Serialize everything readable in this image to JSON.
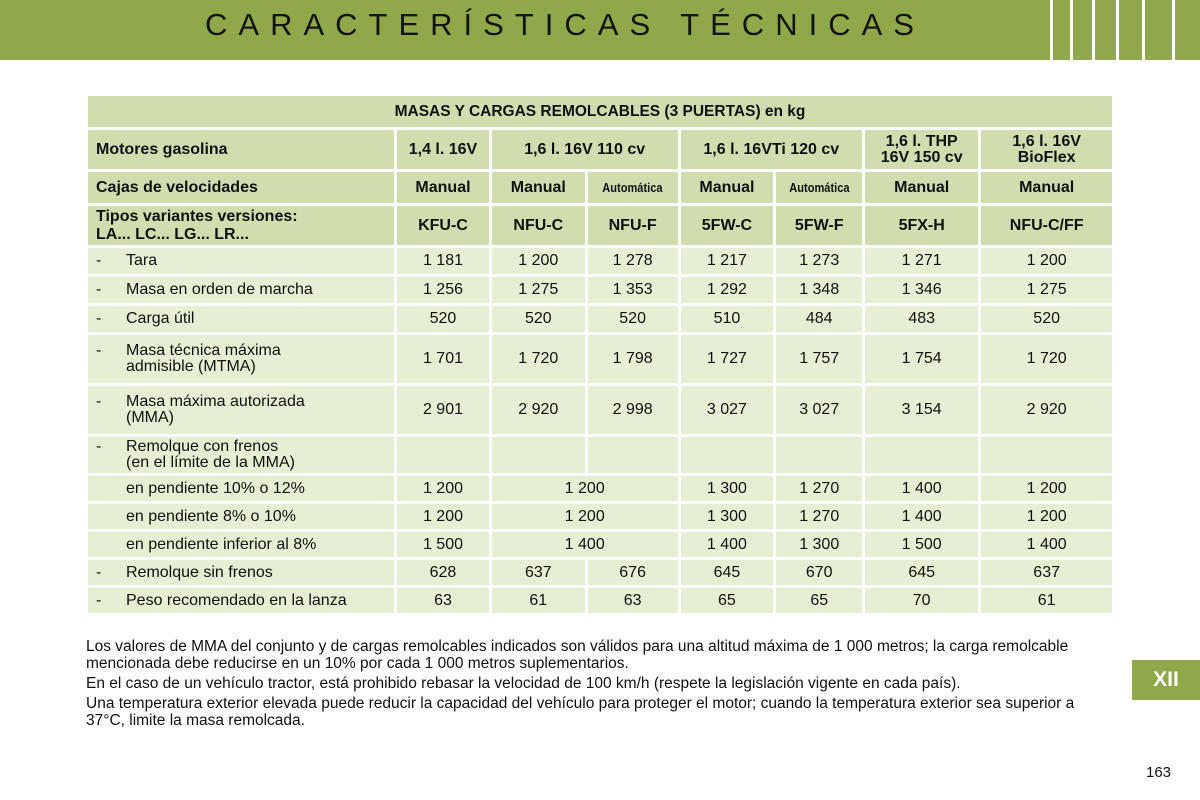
{
  "header": {
    "title": "CARACTERÍSTICAS TÉCNICAS"
  },
  "table": {
    "title": "MASAS Y CARGAS REMOLCABLES (3 PUERTAS) en kg",
    "engines_label": "Motores gasolina",
    "engines": [
      "1,4 l. 16V",
      "1,6 l. 16V 110 cv",
      "1,6 l. 16VTi 120 cv",
      "1,6 l. THP 16V 150 cv",
      "1,6 l. 16V BioFlex"
    ],
    "engines_lines": [
      [
        "1,4 l. 16V"
      ],
      [
        "1,6 l. 16V 110 cv"
      ],
      [
        "1,6 l. 16VTi 120 cv"
      ],
      [
        "1,6 l. THP",
        "16V 150 cv"
      ],
      [
        "1,6 l. 16V",
        "BioFlex"
      ]
    ],
    "gearbox_label": "Cajas de velocidades",
    "gearboxes": [
      "Manual",
      "Manual",
      "Automática",
      "Manual",
      "Automática",
      "Manual",
      "Manual"
    ],
    "variants_label_1": "Tipos variantes versiones:",
    "variants_label_2": "LA... LC... LG... LR...",
    "variants": [
      "KFU-C",
      "NFU-C",
      "NFU-F",
      "5FW-C",
      "5FW-F",
      "5FX-H",
      "NFU-C/FF"
    ],
    "rows": [
      {
        "dash": "-",
        "label": "Tara",
        "values": [
          "1 181",
          "1 200",
          "1 278",
          "1 217",
          "1 273",
          "1 271",
          "1 200"
        ]
      },
      {
        "dash": "-",
        "label": "Masa en orden de marcha",
        "values": [
          "1 256",
          "1 275",
          "1 353",
          "1 292",
          "1 348",
          "1 346",
          "1 275"
        ]
      },
      {
        "dash": "-",
        "label": "Carga útil",
        "values": [
          "520",
          "520",
          "520",
          "510",
          "484",
          "483",
          "520"
        ]
      },
      {
        "dash": "-",
        "label_1": "Masa técnica máxima",
        "label_2": "admisible (MTMA)",
        "values": [
          "1 701",
          "1 720",
          "1 798",
          "1 727",
          "1 757",
          "1 754",
          "1 720"
        ]
      },
      {
        "dash": "-",
        "label_1": "Masa máxima autorizada",
        "label_2": "(MMA)",
        "values": [
          "2 901",
          "2 920",
          "2 998",
          "3 027",
          "3 027",
          "3 154",
          "2 920"
        ]
      },
      {
        "dash": "-",
        "label_1": "Remolque con frenos",
        "label_2": "(en el límite de la MMA)"
      },
      {
        "label": "en pendiente 10% o 12%",
        "values": [
          "1 200",
          "1 200",
          "1 300",
          "1 270",
          "1 400",
          "1 200"
        ]
      },
      {
        "label": "en pendiente 8% o 10%",
        "values": [
          "1 200",
          "1 200",
          "1 300",
          "1 270",
          "1 400",
          "1 200"
        ]
      },
      {
        "label": "en pendiente inferior al 8%",
        "values": [
          "1 500",
          "1 400",
          "1 400",
          "1 300",
          "1 500",
          "1 400"
        ]
      },
      {
        "dash": "-",
        "label": "Remolque sin frenos",
        "values": [
          "628",
          "637",
          "676",
          "645",
          "670",
          "645",
          "637"
        ]
      },
      {
        "dash": "-",
        "label": "Peso recomendado en la lanza",
        "values": [
          "63",
          "61",
          "63",
          "65",
          "65",
          "70",
          "61"
        ]
      }
    ]
  },
  "notes": [
    "Los valores de MMA del conjunto y de cargas remolcables indicados son válidos para una altitud máxima de 1 000 metros; la carga remolcable mencionada debe reducirse en un 10% por cada 1 000 metros suplementarios.",
    "En el caso de un vehículo tractor, está prohibido rebasar la velocidad de 100 km/h (respete la legislación vigente en cada país).",
    "Una temperatura exterior elevada puede reducir la capacidad del vehículo para proteger el motor; cuando la temperatura exterior sea superior a 37°C, limite la masa remolcada."
  ],
  "section_badge": "XII",
  "page_number": "163",
  "colors": {
    "header_green": "#8fa94a",
    "table_header": "#d1dcaf",
    "table_body": "#e8eed4"
  }
}
